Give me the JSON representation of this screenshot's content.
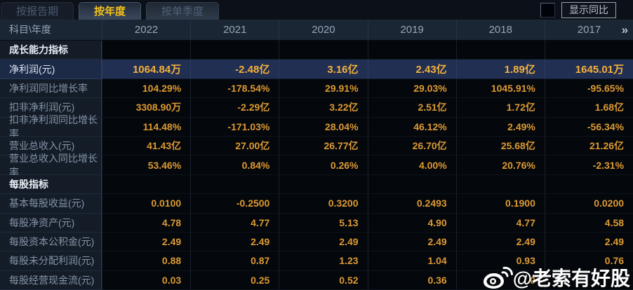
{
  "tabs": [
    {
      "label": "按报告期",
      "active": false
    },
    {
      "label": "按年度",
      "active": true
    },
    {
      "label": "按单季度",
      "active": false
    }
  ],
  "controls": {
    "show_yoy_label": "显示同比",
    "more_years_icon": "»"
  },
  "table": {
    "corner_label": "科目\\年度",
    "years": [
      "2022",
      "2021",
      "2020",
      "2019",
      "2018",
      "2017"
    ],
    "rows": [
      {
        "label": "成长能力指标",
        "type": "section",
        "values": [
          "",
          "",
          "",
          "",
          "",
          ""
        ]
      },
      {
        "label": "净利润(元)",
        "type": "highlight",
        "values": [
          "1064.84万",
          "-2.48亿",
          "3.16亿",
          "2.43亿",
          "1.89亿",
          "1645.01万"
        ]
      },
      {
        "label": "净利润同比增长率",
        "type": "data",
        "values": [
          "104.29%",
          "-178.54%",
          "29.91%",
          "29.03%",
          "1045.91%",
          "-95.65%"
        ]
      },
      {
        "label": "扣非净利润(元)",
        "type": "data",
        "values": [
          "3308.90万",
          "-2.29亿",
          "3.22亿",
          "2.51亿",
          "1.72亿",
          "1.68亿"
        ]
      },
      {
        "label": "扣非净利润同比增长率",
        "type": "data",
        "values": [
          "114.48%",
          "-171.03%",
          "28.04%",
          "46.12%",
          "2.49%",
          "-56.34%"
        ]
      },
      {
        "label": "营业总收入(元)",
        "type": "data",
        "values": [
          "41.43亿",
          "27.00亿",
          "26.77亿",
          "26.70亿",
          "25.68亿",
          "21.26亿"
        ]
      },
      {
        "label": "营业总收入同比增长率",
        "type": "data",
        "values": [
          "53.46%",
          "0.84%",
          "0.26%",
          "4.00%",
          "20.76%",
          "-2.31%"
        ]
      },
      {
        "label": "每股指标",
        "type": "section",
        "values": [
          "",
          "",
          "",
          "",
          "",
          ""
        ]
      },
      {
        "label": "基本每股收益(元)",
        "type": "data",
        "values": [
          "0.0100",
          "-0.2500",
          "0.3200",
          "0.2493",
          "0.1900",
          "0.0200"
        ]
      },
      {
        "label": "每股净资产(元)",
        "type": "data",
        "values": [
          "4.78",
          "4.77",
          "5.13",
          "4.90",
          "4.77",
          "4.58"
        ]
      },
      {
        "label": "每股资本公积金(元)",
        "type": "data",
        "values": [
          "2.49",
          "2.49",
          "2.49",
          "2.49",
          "2.49",
          "2.49"
        ]
      },
      {
        "label": "每股未分配利润(元)",
        "type": "data",
        "values": [
          "0.88",
          "0.87",
          "1.23",
          "1.04",
          "0.93",
          "0.76"
        ]
      },
      {
        "label": "每股经营现金流(元)",
        "type": "data",
        "values": [
          "0.03",
          "0.25",
          "0.52",
          "0.36",
          "0",
          ""
        ]
      }
    ]
  },
  "watermark": {
    "text": "@老索有好股",
    "icon": "weibo-icon"
  },
  "colors": {
    "accent_gold": "#f3c11c",
    "value_orange": "#dd9a33",
    "highlight_row_bg": "#212f53",
    "header_bg": "#1b2634",
    "label_col_bg": "#141c28",
    "data_bg": "#04070b"
  }
}
